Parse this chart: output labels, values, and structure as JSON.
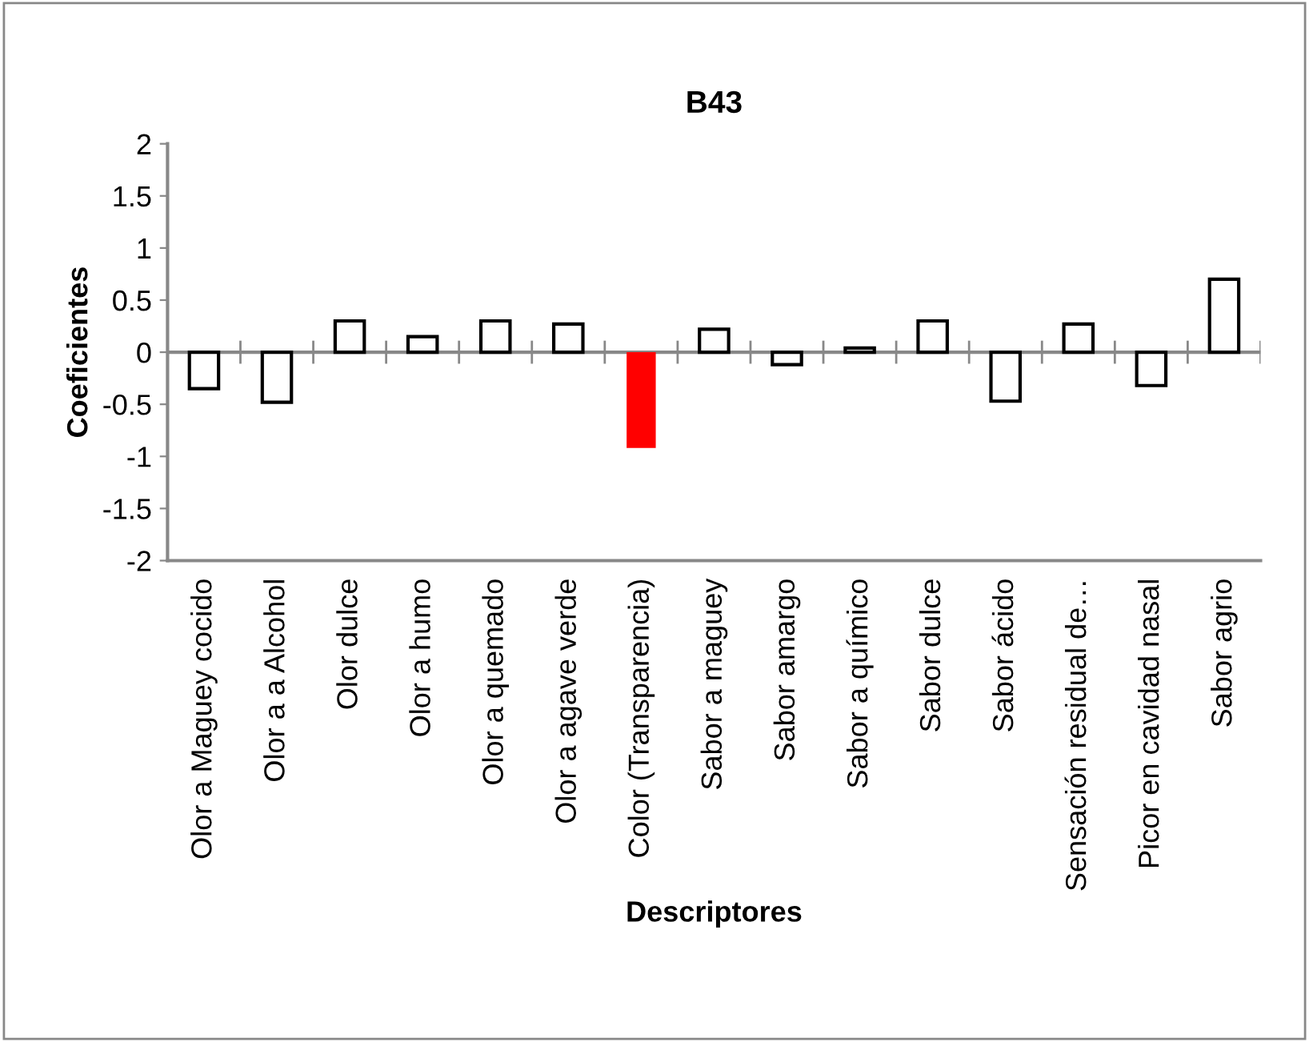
{
  "chart_data": {
    "type": "bar",
    "title": "B43",
    "xlabel": "Descriptores",
    "ylabel": "Coeficientes",
    "categories": [
      "Olor a Maguey cocido",
      "Olor a a Alcohol",
      "Olor dulce",
      "Olor a humo",
      "Olor a quemado",
      "Olor a agave verde",
      "Color (Transparencia)",
      "Sabor a maguey",
      "Sabor amargo",
      "Sabor a químico",
      "Sabor dulce",
      "Sabor ácido",
      "Sensación residual de…",
      "Picor en cavidad nasal",
      "Sabor agrio"
    ],
    "values": [
      -0.35,
      -0.48,
      0.3,
      0.15,
      0.3,
      0.27,
      -0.92,
      0.22,
      -0.12,
      0.04,
      0.3,
      -0.47,
      0.27,
      -0.32,
      0.7
    ],
    "colors": [
      "#ffffff",
      "#ffffff",
      "#ffffff",
      "#ffffff",
      "#ffffff",
      "#ffffff",
      "#ff0000",
      "#ffffff",
      "#ffffff",
      "#ffffff",
      "#ffffff",
      "#ffffff",
      "#ffffff",
      "#ffffff",
      "#ffffff"
    ],
    "ylim": [
      -2,
      2
    ],
    "yticks": [
      -2,
      -1.5,
      -1,
      -0.5,
      0,
      0.5,
      1,
      1.5,
      2
    ],
    "grid": false,
    "legend": false,
    "ref_lines": [
      {
        "axis": "y",
        "value": 0,
        "label": null,
        "color": "#888888"
      }
    ]
  }
}
